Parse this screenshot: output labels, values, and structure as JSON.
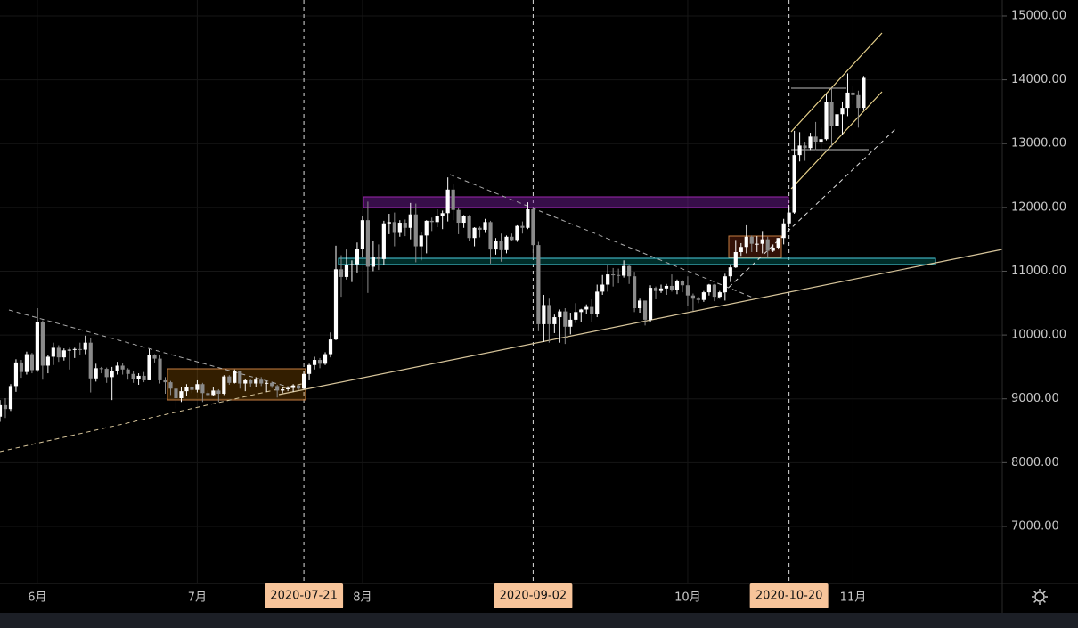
{
  "chart_data": {
    "type": "candlestick",
    "xlim": [
      "2020-05-25",
      "2020-11-29"
    ],
    "ylim": [
      6106,
      15251
    ],
    "yticks": [
      {
        "value": 7000,
        "label": "7000.00"
      },
      {
        "value": 8000,
        "label": "8000.00"
      },
      {
        "value": 9000,
        "label": "9000.00"
      },
      {
        "value": 10000,
        "label": "10000.00"
      },
      {
        "value": 11000,
        "label": "11000.00"
      },
      {
        "value": 12000,
        "label": "12000.00"
      },
      {
        "value": 13000,
        "label": "13000.00"
      },
      {
        "value": 14000,
        "label": "14000.00"
      },
      {
        "value": 15000,
        "label": "15000.00"
      }
    ],
    "xticks": [
      {
        "value": "2020-06-01",
        "label": "6月"
      },
      {
        "value": "2020-07-01",
        "label": "7月"
      },
      {
        "value": "2020-08-01",
        "label": "8月"
      },
      {
        "value": "2020-10-01",
        "label": "10月"
      },
      {
        "value": "2020-11-01",
        "label": "11月"
      }
    ],
    "highlighted_dates": [
      "2020-07-21",
      "2020-09-02",
      "2020-10-20"
    ],
    "grid": true,
    "up_color": "#ffffff",
    "down_color": "#8a8a8a",
    "x": [
      "2020-05-25",
      "2020-05-26",
      "2020-05-27",
      "2020-05-28",
      "2020-05-29",
      "2020-05-30",
      "2020-05-31",
      "2020-06-01",
      "2020-06-02",
      "2020-06-03",
      "2020-06-04",
      "2020-06-05",
      "2020-06-06",
      "2020-06-07",
      "2020-06-08",
      "2020-06-09",
      "2020-06-10",
      "2020-06-11",
      "2020-06-12",
      "2020-06-13",
      "2020-06-14",
      "2020-06-15",
      "2020-06-16",
      "2020-06-17",
      "2020-06-18",
      "2020-06-19",
      "2020-06-20",
      "2020-06-21",
      "2020-06-22",
      "2020-06-23",
      "2020-06-24",
      "2020-06-25",
      "2020-06-26",
      "2020-06-27",
      "2020-06-28",
      "2020-06-29",
      "2020-06-30",
      "2020-07-01",
      "2020-07-02",
      "2020-07-03",
      "2020-07-04",
      "2020-07-05",
      "2020-07-06",
      "2020-07-07",
      "2020-07-08",
      "2020-07-09",
      "2020-07-10",
      "2020-07-11",
      "2020-07-12",
      "2020-07-13",
      "2020-07-14",
      "2020-07-15",
      "2020-07-16",
      "2020-07-17",
      "2020-07-18",
      "2020-07-19",
      "2020-07-20",
      "2020-07-21",
      "2020-07-22",
      "2020-07-23",
      "2020-07-24",
      "2020-07-25",
      "2020-07-26",
      "2020-07-27",
      "2020-07-28",
      "2020-07-29",
      "2020-07-30",
      "2020-07-31",
      "2020-08-01",
      "2020-08-02",
      "2020-08-03",
      "2020-08-04",
      "2020-08-05",
      "2020-08-06",
      "2020-08-07",
      "2020-08-08",
      "2020-08-09",
      "2020-08-10",
      "2020-08-11",
      "2020-08-12",
      "2020-08-13",
      "2020-08-14",
      "2020-08-15",
      "2020-08-16",
      "2020-08-17",
      "2020-08-18",
      "2020-08-19",
      "2020-08-20",
      "2020-08-21",
      "2020-08-22",
      "2020-08-23",
      "2020-08-24",
      "2020-08-25",
      "2020-08-26",
      "2020-08-27",
      "2020-08-28",
      "2020-08-29",
      "2020-08-30",
      "2020-08-31",
      "2020-09-01",
      "2020-09-02",
      "2020-09-03",
      "2020-09-04",
      "2020-09-05",
      "2020-09-06",
      "2020-09-07",
      "2020-09-08",
      "2020-09-09",
      "2020-09-10",
      "2020-09-11",
      "2020-09-12",
      "2020-09-13",
      "2020-09-14",
      "2020-09-15",
      "2020-09-16",
      "2020-09-17",
      "2020-09-18",
      "2020-09-19",
      "2020-09-20",
      "2020-09-21",
      "2020-09-22",
      "2020-09-23",
      "2020-09-24",
      "2020-09-25",
      "2020-09-26",
      "2020-09-27",
      "2020-09-28",
      "2020-09-29",
      "2020-09-30",
      "2020-10-01",
      "2020-10-02",
      "2020-10-03",
      "2020-10-04",
      "2020-10-05",
      "2020-10-06",
      "2020-10-07",
      "2020-10-08",
      "2020-10-09",
      "2020-10-10",
      "2020-10-11",
      "2020-10-12",
      "2020-10-13",
      "2020-10-14",
      "2020-10-15",
      "2020-10-16",
      "2020-10-17",
      "2020-10-18",
      "2020-10-19",
      "2020-10-20",
      "2020-10-21",
      "2020-10-22",
      "2020-10-23",
      "2020-10-24",
      "2020-10-25",
      "2020-10-26",
      "2020-10-27",
      "2020-10-28",
      "2020-10-29",
      "2020-10-30",
      "2020-10-31",
      "2020-11-01",
      "2020-11-02",
      "2020-11-03"
    ],
    "ohlc": [
      [
        8720,
        8980,
        8640,
        8900
      ],
      [
        8900,
        9010,
        8700,
        8840
      ],
      [
        8840,
        9230,
        8810,
        9200
      ],
      [
        9200,
        9620,
        9110,
        9570
      ],
      [
        9570,
        9610,
        9330,
        9420
      ],
      [
        9420,
        9740,
        9380,
        9700
      ],
      [
        9700,
        9720,
        9400,
        9450
      ],
      [
        9450,
        10420,
        9420,
        10200
      ],
      [
        10200,
        10230,
        9300,
        9520
      ],
      [
        9520,
        9690,
        9400,
        9660
      ],
      [
        9660,
        9880,
        9530,
        9800
      ],
      [
        9800,
        9840,
        9580,
        9650
      ],
      [
        9650,
        9790,
        9600,
        9760
      ],
      [
        9760,
        9800,
        9460,
        9770
      ],
      [
        9770,
        9800,
        9640,
        9780
      ],
      [
        9780,
        9880,
        9680,
        9770
      ],
      [
        9770,
        9990,
        9700,
        9880
      ],
      [
        9880,
        9960,
        9100,
        9320
      ],
      [
        9320,
        9550,
        9270,
        9480
      ],
      [
        9480,
        9500,
        9400,
        9470
      ],
      [
        9470,
        9490,
        9250,
        9340
      ],
      [
        9340,
        9500,
        8980,
        9430
      ],
      [
        9430,
        9580,
        9380,
        9520
      ],
      [
        9520,
        9560,
        9380,
        9460
      ],
      [
        9460,
        9480,
        9300,
        9390
      ],
      [
        9390,
        9440,
        9250,
        9310
      ],
      [
        9310,
        9400,
        9220,
        9360
      ],
      [
        9360,
        9420,
        9260,
        9290
      ],
      [
        9290,
        9780,
        9290,
        9690
      ],
      [
        9690,
        9700,
        9570,
        9630
      ],
      [
        9630,
        9680,
        9240,
        9290
      ],
      [
        9290,
        9340,
        9080,
        9260
      ],
      [
        9260,
        9280,
        9060,
        9160
      ],
      [
        9160,
        9200,
        8850,
        9010
      ],
      [
        9010,
        9190,
        8950,
        9120
      ],
      [
        9120,
        9230,
        9050,
        9190
      ],
      [
        9190,
        9200,
        9090,
        9140
      ],
      [
        9140,
        9290,
        9100,
        9230
      ],
      [
        9230,
        9250,
        8950,
        9090
      ],
      [
        9090,
        9130,
        9050,
        9060
      ],
      [
        9060,
        9190,
        9050,
        9130
      ],
      [
        9130,
        9150,
        8950,
        9080
      ],
      [
        9080,
        9370,
        9060,
        9350
      ],
      [
        9350,
        9370,
        9220,
        9250
      ],
      [
        9250,
        9460,
        9240,
        9430
      ],
      [
        9430,
        9440,
        9160,
        9240
      ],
      [
        9240,
        9310,
        9120,
        9290
      ],
      [
        9290,
        9300,
        9190,
        9240
      ],
      [
        9240,
        9340,
        9180,
        9300
      ],
      [
        9300,
        9340,
        9200,
        9240
      ],
      [
        9240,
        9280,
        9110,
        9250
      ],
      [
        9250,
        9270,
        9170,
        9200
      ],
      [
        9200,
        9220,
        9020,
        9130
      ],
      [
        9130,
        9180,
        9090,
        9150
      ],
      [
        9150,
        9190,
        9120,
        9170
      ],
      [
        9170,
        9230,
        9110,
        9210
      ],
      [
        9210,
        9220,
        9140,
        9160
      ],
      [
        9160,
        9430,
        9150,
        9390
      ],
      [
        9390,
        9550,
        9290,
        9530
      ],
      [
        9530,
        9660,
        9460,
        9610
      ],
      [
        9610,
        9640,
        9480,
        9550
      ],
      [
        9550,
        9730,
        9530,
        9700
      ],
      [
        9700,
        10040,
        9650,
        9930
      ],
      [
        9930,
        11400,
        9920,
        11030
      ],
      [
        11030,
        11250,
        10600,
        10910
      ],
      [
        10910,
        11340,
        10870,
        11100
      ],
      [
        11100,
        11170,
        10830,
        11110
      ],
      [
        11110,
        11450,
        10980,
        11350
      ],
      [
        11350,
        11860,
        11220,
        11800
      ],
      [
        11800,
        12090,
        10660,
        11070
      ],
      [
        11070,
        11480,
        11000,
        11230
      ],
      [
        11230,
        11420,
        11020,
        11190
      ],
      [
        11190,
        11790,
        11100,
        11750
      ],
      [
        11750,
        11900,
        11580,
        11770
      ],
      [
        11770,
        11920,
        11390,
        11600
      ],
      [
        11600,
        11800,
        11540,
        11760
      ],
      [
        11760,
        11810,
        11550,
        11680
      ],
      [
        11680,
        12070,
        11500,
        11890
      ],
      [
        11890,
        12060,
        11140,
        11390
      ],
      [
        11390,
        11620,
        11170,
        11560
      ],
      [
        11560,
        11800,
        11280,
        11790
      ],
      [
        11790,
        11840,
        11630,
        11770
      ],
      [
        11770,
        11970,
        11690,
        11870
      ],
      [
        11870,
        11950,
        11660,
        11910
      ],
      [
        11910,
        12470,
        11780,
        12280
      ],
      [
        12280,
        12360,
        11800,
        11960
      ],
      [
        11960,
        11990,
        11580,
        11760
      ],
      [
        11760,
        11880,
        11680,
        11860
      ],
      [
        11860,
        11880,
        11480,
        11520
      ],
      [
        11520,
        11690,
        11390,
        11680
      ],
      [
        11680,
        11700,
        11530,
        11650
      ],
      [
        11650,
        11820,
        11600,
        11770
      ],
      [
        11770,
        11790,
        11120,
        11340
      ],
      [
        11340,
        11520,
        11260,
        11470
      ],
      [
        11470,
        11590,
        11150,
        11330
      ],
      [
        11330,
        11560,
        11280,
        11540
      ],
      [
        11540,
        11590,
        11470,
        11490
      ],
      [
        11490,
        11720,
        11460,
        11710
      ],
      [
        11710,
        11780,
        11590,
        11680
      ],
      [
        11680,
        12080,
        11660,
        11970
      ],
      [
        11970,
        12000,
        11200,
        11410
      ],
      [
        11410,
        11460,
        10060,
        10170
      ],
      [
        10170,
        10630,
        9890,
        10470
      ],
      [
        10470,
        10570,
        9880,
        10170
      ],
      [
        10170,
        10320,
        10030,
        10280
      ],
      [
        10280,
        10400,
        9880,
        10370
      ],
      [
        10370,
        10420,
        9860,
        10130
      ],
      [
        10130,
        10350,
        10010,
        10240
      ],
      [
        10240,
        10500,
        10190,
        10360
      ],
      [
        10360,
        10410,
        10200,
        10400
      ],
      [
        10400,
        10480,
        10330,
        10440
      ],
      [
        10440,
        10560,
        10210,
        10330
      ],
      [
        10330,
        10790,
        10280,
        10680
      ],
      [
        10680,
        10940,
        10630,
        10790
      ],
      [
        10790,
        11090,
        10680,
        10950
      ],
      [
        10950,
        11050,
        10760,
        10940
      ],
      [
        10940,
        11040,
        10810,
        10930
      ],
      [
        10930,
        11170,
        10900,
        11080
      ],
      [
        11080,
        11090,
        10800,
        10920
      ],
      [
        10920,
        10990,
        10360,
        10420
      ],
      [
        10420,
        10570,
        10350,
        10540
      ],
      [
        10540,
        10540,
        10150,
        10240
      ],
      [
        10240,
        10780,
        10200,
        10740
      ],
      [
        10740,
        10760,
        10560,
        10690
      ],
      [
        10690,
        10790,
        10660,
        10730
      ],
      [
        10730,
        10800,
        10630,
        10770
      ],
      [
        10770,
        10950,
        10680,
        10700
      ],
      [
        10700,
        10870,
        10640,
        10840
      ],
      [
        10840,
        10860,
        10670,
        10780
      ],
      [
        10780,
        10920,
        10450,
        10620
      ],
      [
        10620,
        10650,
        10380,
        10570
      ],
      [
        10570,
        10600,
        10500,
        10550
      ],
      [
        10550,
        10690,
        10520,
        10670
      ],
      [
        10670,
        10800,
        10620,
        10790
      ],
      [
        10790,
        10800,
        10530,
        10600
      ],
      [
        10600,
        10690,
        10570,
        10670
      ],
      [
        10670,
        10960,
        10540,
        10920
      ],
      [
        10920,
        11110,
        10830,
        11060
      ],
      [
        11060,
        11490,
        11050,
        11300
      ],
      [
        11300,
        11440,
        11240,
        11380
      ],
      [
        11380,
        11720,
        11280,
        11540
      ],
      [
        11540,
        11560,
        11300,
        11430
      ],
      [
        11430,
        11550,
        11300,
        11430
      ],
      [
        11430,
        11630,
        11280,
        11500
      ],
      [
        11500,
        11540,
        11220,
        11320
      ],
      [
        11320,
        11420,
        11300,
        11370
      ],
      [
        11370,
        11520,
        11340,
        11520
      ],
      [
        11520,
        11820,
        11420,
        11750
      ],
      [
        11750,
        12040,
        11690,
        11920
      ],
      [
        11920,
        13200,
        11900,
        12820
      ],
      [
        12820,
        13180,
        12720,
        12970
      ],
      [
        12970,
        13030,
        12730,
        12930
      ],
      [
        12930,
        13170,
        12900,
        13110
      ],
      [
        13110,
        13340,
        12900,
        13030
      ],
      [
        13030,
        13250,
        12790,
        13070
      ],
      [
        13070,
        13770,
        13050,
        13650
      ],
      [
        13650,
        13860,
        12950,
        13270
      ],
      [
        13270,
        13640,
        12990,
        13460
      ],
      [
        13460,
        13660,
        13130,
        13560
      ],
      [
        13560,
        14100,
        13430,
        13800
      ],
      [
        13800,
        13900,
        13620,
        13760
      ],
      [
        13760,
        13830,
        13250,
        13560
      ],
      [
        13560,
        14060,
        13530,
        14030
      ]
    ]
  }
}
